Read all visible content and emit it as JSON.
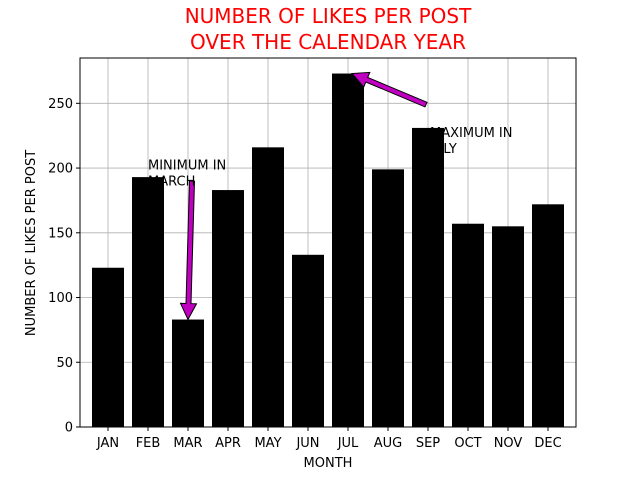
{
  "chart_data": {
    "type": "bar",
    "title_lines": [
      "NUMBER OF LIKES PER POST",
      "OVER THE CALENDAR YEAR"
    ],
    "title_color": "#ff0000",
    "xlabel": "MONTH",
    "ylabel": "NUMBER OF LIKES PER POST",
    "categories": [
      "JAN",
      "FEB",
      "MAR",
      "APR",
      "MAY",
      "JUN",
      "JUL",
      "AUG",
      "SEP",
      "OCT",
      "NOV",
      "DEC"
    ],
    "values": [
      123,
      193,
      83,
      183,
      216,
      133,
      273,
      199,
      231,
      157,
      155,
      172
    ],
    "ylim": [
      0,
      285
    ],
    "yticks": [
      0,
      50,
      100,
      150,
      200,
      250
    ],
    "grid": true,
    "bar_color": "#000000",
    "arrow_color": "#c000c0",
    "annotations": [
      {
        "name": "min-annotation",
        "text_lines": [
          "MINIMUM IN",
          "MARCH"
        ],
        "text_x": 1.0,
        "text_y": 199,
        "target_x": 2,
        "target_y": 83,
        "tail_x": 2.1,
        "tail_y": 190
      },
      {
        "name": "max-annotation",
        "text_lines": [
          "MAXIMUM IN",
          "JULY"
        ],
        "text_x": 8.05,
        "text_y": 224,
        "target_x": 6.1,
        "target_y": 273,
        "tail_x": 7.95,
        "tail_y": 249
      }
    ]
  }
}
